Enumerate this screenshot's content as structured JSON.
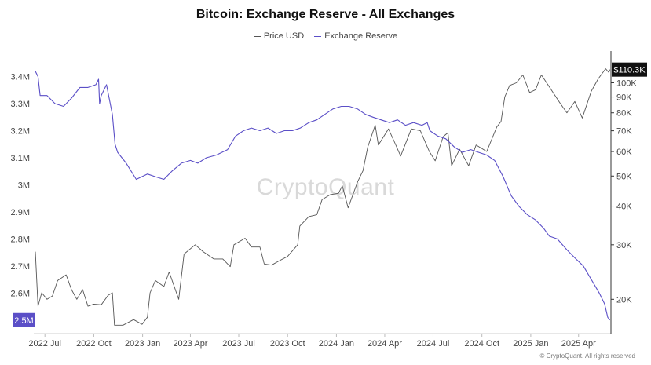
{
  "chart_data": {
    "type": "line",
    "title": "Bitcoin: Exchange Reserve - All Exchanges",
    "legend_position": "top-center",
    "grid": false,
    "watermark": "CryptoQuant",
    "footer": "© CryptoQuant. All rights reserved",
    "x_tick_labels": [
      "2022 Jul",
      "2022 Oct",
      "2023 Jan",
      "2023 Apr",
      "2023 Jul",
      "2023 Oct",
      "2024 Jan",
      "2024 Apr",
      "2024 Jul",
      "2024 Oct",
      "2025 Jan",
      "2025 Apr"
    ],
    "x_ticks": [
      "2022-07-01",
      "2022-10-01",
      "2023-01-01",
      "2023-04-01",
      "2023-07-01",
      "2023-10-01",
      "2024-01-01",
      "2024-04-01",
      "2024-07-01",
      "2024-10-01",
      "2025-01-01",
      "2025-04-01"
    ],
    "xlim": [
      "2022-06-10",
      "2025-06-01"
    ],
    "y_left": {
      "tick_labels": [
        "3.4M",
        "3.3M",
        "3.2M",
        "3.1M",
        "3M",
        "2.9M",
        "2.8M",
        "2.7M",
        "2.6M"
      ],
      "ticks": [
        3400000,
        3300000,
        3200000,
        3100000,
        3000000,
        2900000,
        2800000,
        2700000,
        2600000
      ],
      "ylim": [
        2450000,
        3480000
      ],
      "current_label": "2.5M",
      "current_value": 2500000
    },
    "y_right": {
      "scale": "log",
      "tick_labels": [
        "100K",
        "90K",
        "80K",
        "70K",
        "60K",
        "50K",
        "40K",
        "30K",
        "20K"
      ],
      "ticks": [
        100000,
        90000,
        80000,
        70000,
        60000,
        50000,
        40000,
        30000,
        20000
      ],
      "ylim": [
        15500,
        123000
      ],
      "current_label": "$110.3K",
      "current_value": 110300
    },
    "series": [
      {
        "name": "Price USD",
        "color": "#555555",
        "axis": "right",
        "points": [
          [
            "2022-06-13",
            28500
          ],
          [
            "2022-06-18",
            19000
          ],
          [
            "2022-06-25",
            21000
          ],
          [
            "2022-07-05",
            20000
          ],
          [
            "2022-07-15",
            20500
          ],
          [
            "2022-07-25",
            23000
          ],
          [
            "2022-08-10",
            24000
          ],
          [
            "2022-08-20",
            21500
          ],
          [
            "2022-08-30",
            20000
          ],
          [
            "2022-09-10",
            21500
          ],
          [
            "2022-09-20",
            19000
          ],
          [
            "2022-10-01",
            19300
          ],
          [
            "2022-10-15",
            19200
          ],
          [
            "2022-10-28",
            20600
          ],
          [
            "2022-11-05",
            21000
          ],
          [
            "2022-11-09",
            16500
          ],
          [
            "2022-11-25",
            16500
          ],
          [
            "2022-12-15",
            17200
          ],
          [
            "2022-12-31",
            16600
          ],
          [
            "2023-01-10",
            17500
          ],
          [
            "2023-01-15",
            21000
          ],
          [
            "2023-01-25",
            23000
          ],
          [
            "2023-02-10",
            22000
          ],
          [
            "2023-02-20",
            24500
          ],
          [
            "2023-03-10",
            20000
          ],
          [
            "2023-03-20",
            28000
          ],
          [
            "2023-04-10",
            30000
          ],
          [
            "2023-04-25",
            28500
          ],
          [
            "2023-05-15",
            27000
          ],
          [
            "2023-06-01",
            27000
          ],
          [
            "2023-06-15",
            25500
          ],
          [
            "2023-06-22",
            30000
          ],
          [
            "2023-07-13",
            31500
          ],
          [
            "2023-07-25",
            29500
          ],
          [
            "2023-08-10",
            29500
          ],
          [
            "2023-08-18",
            26000
          ],
          [
            "2023-09-01",
            25800
          ],
          [
            "2023-09-15",
            26600
          ],
          [
            "2023-10-01",
            27500
          ],
          [
            "2023-10-20",
            30000
          ],
          [
            "2023-10-24",
            34500
          ],
          [
            "2023-11-10",
            37000
          ],
          [
            "2023-11-25",
            37500
          ],
          [
            "2023-12-05",
            42000
          ],
          [
            "2023-12-20",
            43500
          ],
          [
            "2024-01-05",
            44000
          ],
          [
            "2024-01-12",
            46500
          ],
          [
            "2024-01-23",
            39500
          ],
          [
            "2024-02-10",
            48000
          ],
          [
            "2024-02-20",
            52000
          ],
          [
            "2024-02-29",
            62000
          ],
          [
            "2024-03-14",
            73000
          ],
          [
            "2024-03-20",
            63000
          ],
          [
            "2024-04-08",
            71000
          ],
          [
            "2024-04-20",
            64000
          ],
          [
            "2024-05-01",
            58000
          ],
          [
            "2024-05-21",
            71000
          ],
          [
            "2024-06-07",
            70000
          ],
          [
            "2024-06-24",
            60000
          ],
          [
            "2024-07-05",
            56000
          ],
          [
            "2024-07-20",
            67000
          ],
          [
            "2024-07-29",
            69000
          ],
          [
            "2024-08-05",
            54000
          ],
          [
            "2024-08-20",
            61000
          ],
          [
            "2024-09-06",
            54000
          ],
          [
            "2024-09-20",
            63000
          ],
          [
            "2024-10-10",
            60000
          ],
          [
            "2024-10-29",
            72000
          ],
          [
            "2024-11-06",
            75000
          ],
          [
            "2024-11-13",
            90000
          ],
          [
            "2024-11-22",
            98000
          ],
          [
            "2024-12-05",
            100000
          ],
          [
            "2024-12-17",
            106000
          ],
          [
            "2024-12-30",
            93000
          ],
          [
            "2025-01-10",
            95000
          ],
          [
            "2025-01-21",
            106000
          ],
          [
            "2025-02-05",
            97000
          ],
          [
            "2025-02-25",
            86000
          ],
          [
            "2025-03-10",
            80000
          ],
          [
            "2025-03-25",
            87000
          ],
          [
            "2025-04-08",
            77000
          ],
          [
            "2025-04-25",
            94000
          ],
          [
            "2025-05-08",
            103000
          ],
          [
            "2025-05-22",
            111000
          ],
          [
            "2025-05-28",
            108000
          ],
          [
            "2025-05-30",
            110300
          ]
        ]
      },
      {
        "name": "Exchange Reserve",
        "color": "#5b4fc7",
        "axis": "left",
        "points": [
          [
            "2022-06-13",
            3420000
          ],
          [
            "2022-06-18",
            3400000
          ],
          [
            "2022-06-22",
            3330000
          ],
          [
            "2022-07-05",
            3330000
          ],
          [
            "2022-07-20",
            3300000
          ],
          [
            "2022-08-05",
            3290000
          ],
          [
            "2022-08-20",
            3320000
          ],
          [
            "2022-09-05",
            3360000
          ],
          [
            "2022-09-20",
            3360000
          ],
          [
            "2022-10-05",
            3370000
          ],
          [
            "2022-10-10",
            3390000
          ],
          [
            "2022-10-12",
            3300000
          ],
          [
            "2022-10-15",
            3330000
          ],
          [
            "2022-10-25",
            3370000
          ],
          [
            "2022-11-05",
            3260000
          ],
          [
            "2022-11-10",
            3150000
          ],
          [
            "2022-11-15",
            3120000
          ],
          [
            "2022-12-01",
            3080000
          ],
          [
            "2022-12-20",
            3020000
          ],
          [
            "2023-01-10",
            3040000
          ],
          [
            "2023-01-25",
            3030000
          ],
          [
            "2023-02-10",
            3020000
          ],
          [
            "2023-02-25",
            3050000
          ],
          [
            "2023-03-15",
            3080000
          ],
          [
            "2023-04-01",
            3090000
          ],
          [
            "2023-04-15",
            3080000
          ],
          [
            "2023-05-01",
            3100000
          ],
          [
            "2023-05-20",
            3110000
          ],
          [
            "2023-06-10",
            3130000
          ],
          [
            "2023-06-25",
            3180000
          ],
          [
            "2023-07-10",
            3200000
          ],
          [
            "2023-07-25",
            3210000
          ],
          [
            "2023-08-10",
            3200000
          ],
          [
            "2023-08-25",
            3210000
          ],
          [
            "2023-09-10",
            3190000
          ],
          [
            "2023-09-25",
            3200000
          ],
          [
            "2023-10-10",
            3200000
          ],
          [
            "2023-10-25",
            3210000
          ],
          [
            "2023-11-10",
            3230000
          ],
          [
            "2023-11-25",
            3240000
          ],
          [
            "2023-12-10",
            3260000
          ],
          [
            "2023-12-25",
            3280000
          ],
          [
            "2024-01-10",
            3290000
          ],
          [
            "2024-01-25",
            3290000
          ],
          [
            "2024-02-10",
            3280000
          ],
          [
            "2024-02-25",
            3260000
          ],
          [
            "2024-03-10",
            3250000
          ],
          [
            "2024-03-25",
            3240000
          ],
          [
            "2024-04-10",
            3230000
          ],
          [
            "2024-04-25",
            3240000
          ],
          [
            "2024-05-10",
            3220000
          ],
          [
            "2024-05-25",
            3230000
          ],
          [
            "2024-06-10",
            3220000
          ],
          [
            "2024-06-20",
            3230000
          ],
          [
            "2024-06-25",
            3200000
          ],
          [
            "2024-07-10",
            3180000
          ],
          [
            "2024-07-25",
            3170000
          ],
          [
            "2024-08-10",
            3140000
          ],
          [
            "2024-08-25",
            3120000
          ],
          [
            "2024-09-10",
            3130000
          ],
          [
            "2024-09-25",
            3120000
          ],
          [
            "2024-10-10",
            3110000
          ],
          [
            "2024-10-25",
            3090000
          ],
          [
            "2024-11-10",
            3030000
          ],
          [
            "2024-11-25",
            2960000
          ],
          [
            "2024-12-10",
            2920000
          ],
          [
            "2024-12-25",
            2890000
          ],
          [
            "2025-01-10",
            2870000
          ],
          [
            "2025-01-25",
            2840000
          ],
          [
            "2025-02-05",
            2810000
          ],
          [
            "2025-02-20",
            2800000
          ],
          [
            "2025-03-10",
            2760000
          ],
          [
            "2025-03-25",
            2730000
          ],
          [
            "2025-04-10",
            2700000
          ],
          [
            "2025-04-25",
            2650000
          ],
          [
            "2025-05-10",
            2600000
          ],
          [
            "2025-05-20",
            2560000
          ],
          [
            "2025-05-26",
            2510000
          ],
          [
            "2025-05-30",
            2500000
          ]
        ]
      }
    ]
  }
}
